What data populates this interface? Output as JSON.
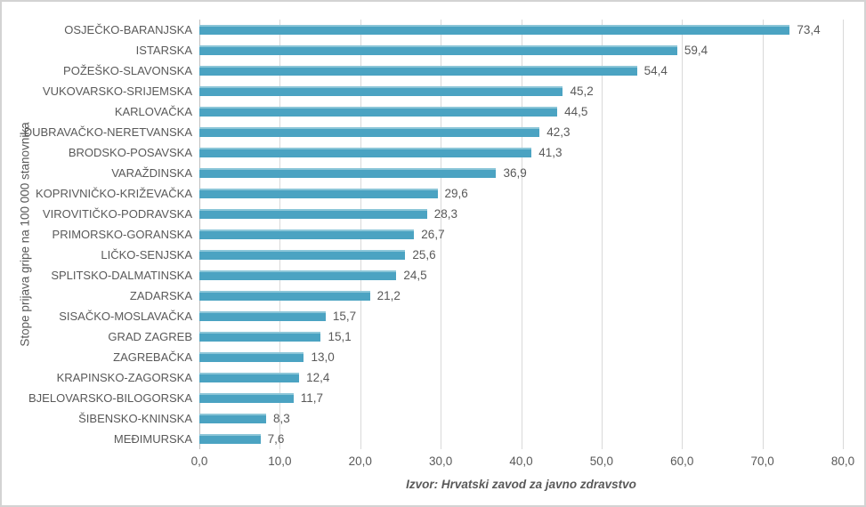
{
  "chart_data": {
    "type": "bar",
    "orientation": "horizontal",
    "title": "",
    "xlabel": "",
    "ylabel": "Stope prijava gripe na 100 000 stanovnika",
    "source_caption": "Izvor: Hrvatski zavod za javno zdravstvo",
    "categories": [
      "OSJEČKO-BARANJSKA",
      "ISTARSKA",
      "POŽEŠKO-SLAVONSKA",
      "VUKOVARSKO-SRIJEMSKA",
      "KARLOVAČKA",
      "DUBRAVAČKO-NERETVANSKA",
      "BRODSKO-POSAVSKA",
      "VARAŽDINSKA",
      "KOPRIVNIČKO-KRIŽEVAČKA",
      "VIROVITIČKO-PODRAVSKA",
      "PRIMORSKO-GORANSKA",
      "LIČKO-SENJSKA",
      "SPLITSKO-DALMATINSKA",
      "ZADARSKA",
      "SISAČKO-MOSLAVAČKA",
      "GRAD ZAGREB",
      "ZAGREBAČKA",
      "KRAPINSKO-ZAGORSKA",
      "BJELOVARSKO-BILOGORSKA",
      "ŠIBENSKO-KNINSKA",
      "MEĐIMURSKA"
    ],
    "values": [
      73.4,
      59.4,
      54.4,
      45.2,
      44.5,
      42.3,
      41.3,
      36.9,
      29.6,
      28.3,
      26.7,
      25.6,
      24.5,
      21.2,
      15.7,
      15.1,
      13.0,
      12.4,
      11.7,
      8.3,
      7.6
    ],
    "value_labels": [
      "73,4",
      "59,4",
      "54,4",
      "45,2",
      "44,5",
      "42,3",
      "41,3",
      "36,9",
      "29,6",
      "28,3",
      "26,7",
      "25,6",
      "24,5",
      "21,2",
      "15,7",
      "15,1",
      "13,0",
      "12,4",
      "11,7",
      "8,3",
      "7,6"
    ],
    "x_ticks": [
      0,
      10,
      20,
      30,
      40,
      50,
      60,
      70,
      80
    ],
    "x_tick_labels": [
      "0,0",
      "10,0",
      "20,0",
      "30,0",
      "40,0",
      "50,0",
      "60,0",
      "70,0",
      "80,0"
    ],
    "xlim": [
      0,
      80
    ],
    "grid": "vertical",
    "legend": "none",
    "bar_color": "#4BA3C2",
    "bar_highlight_color": "#8CC6D8",
    "gridline_color": "#D9D9D9",
    "axis_line_color": "#BFBFBF",
    "text_color": "#595959"
  }
}
